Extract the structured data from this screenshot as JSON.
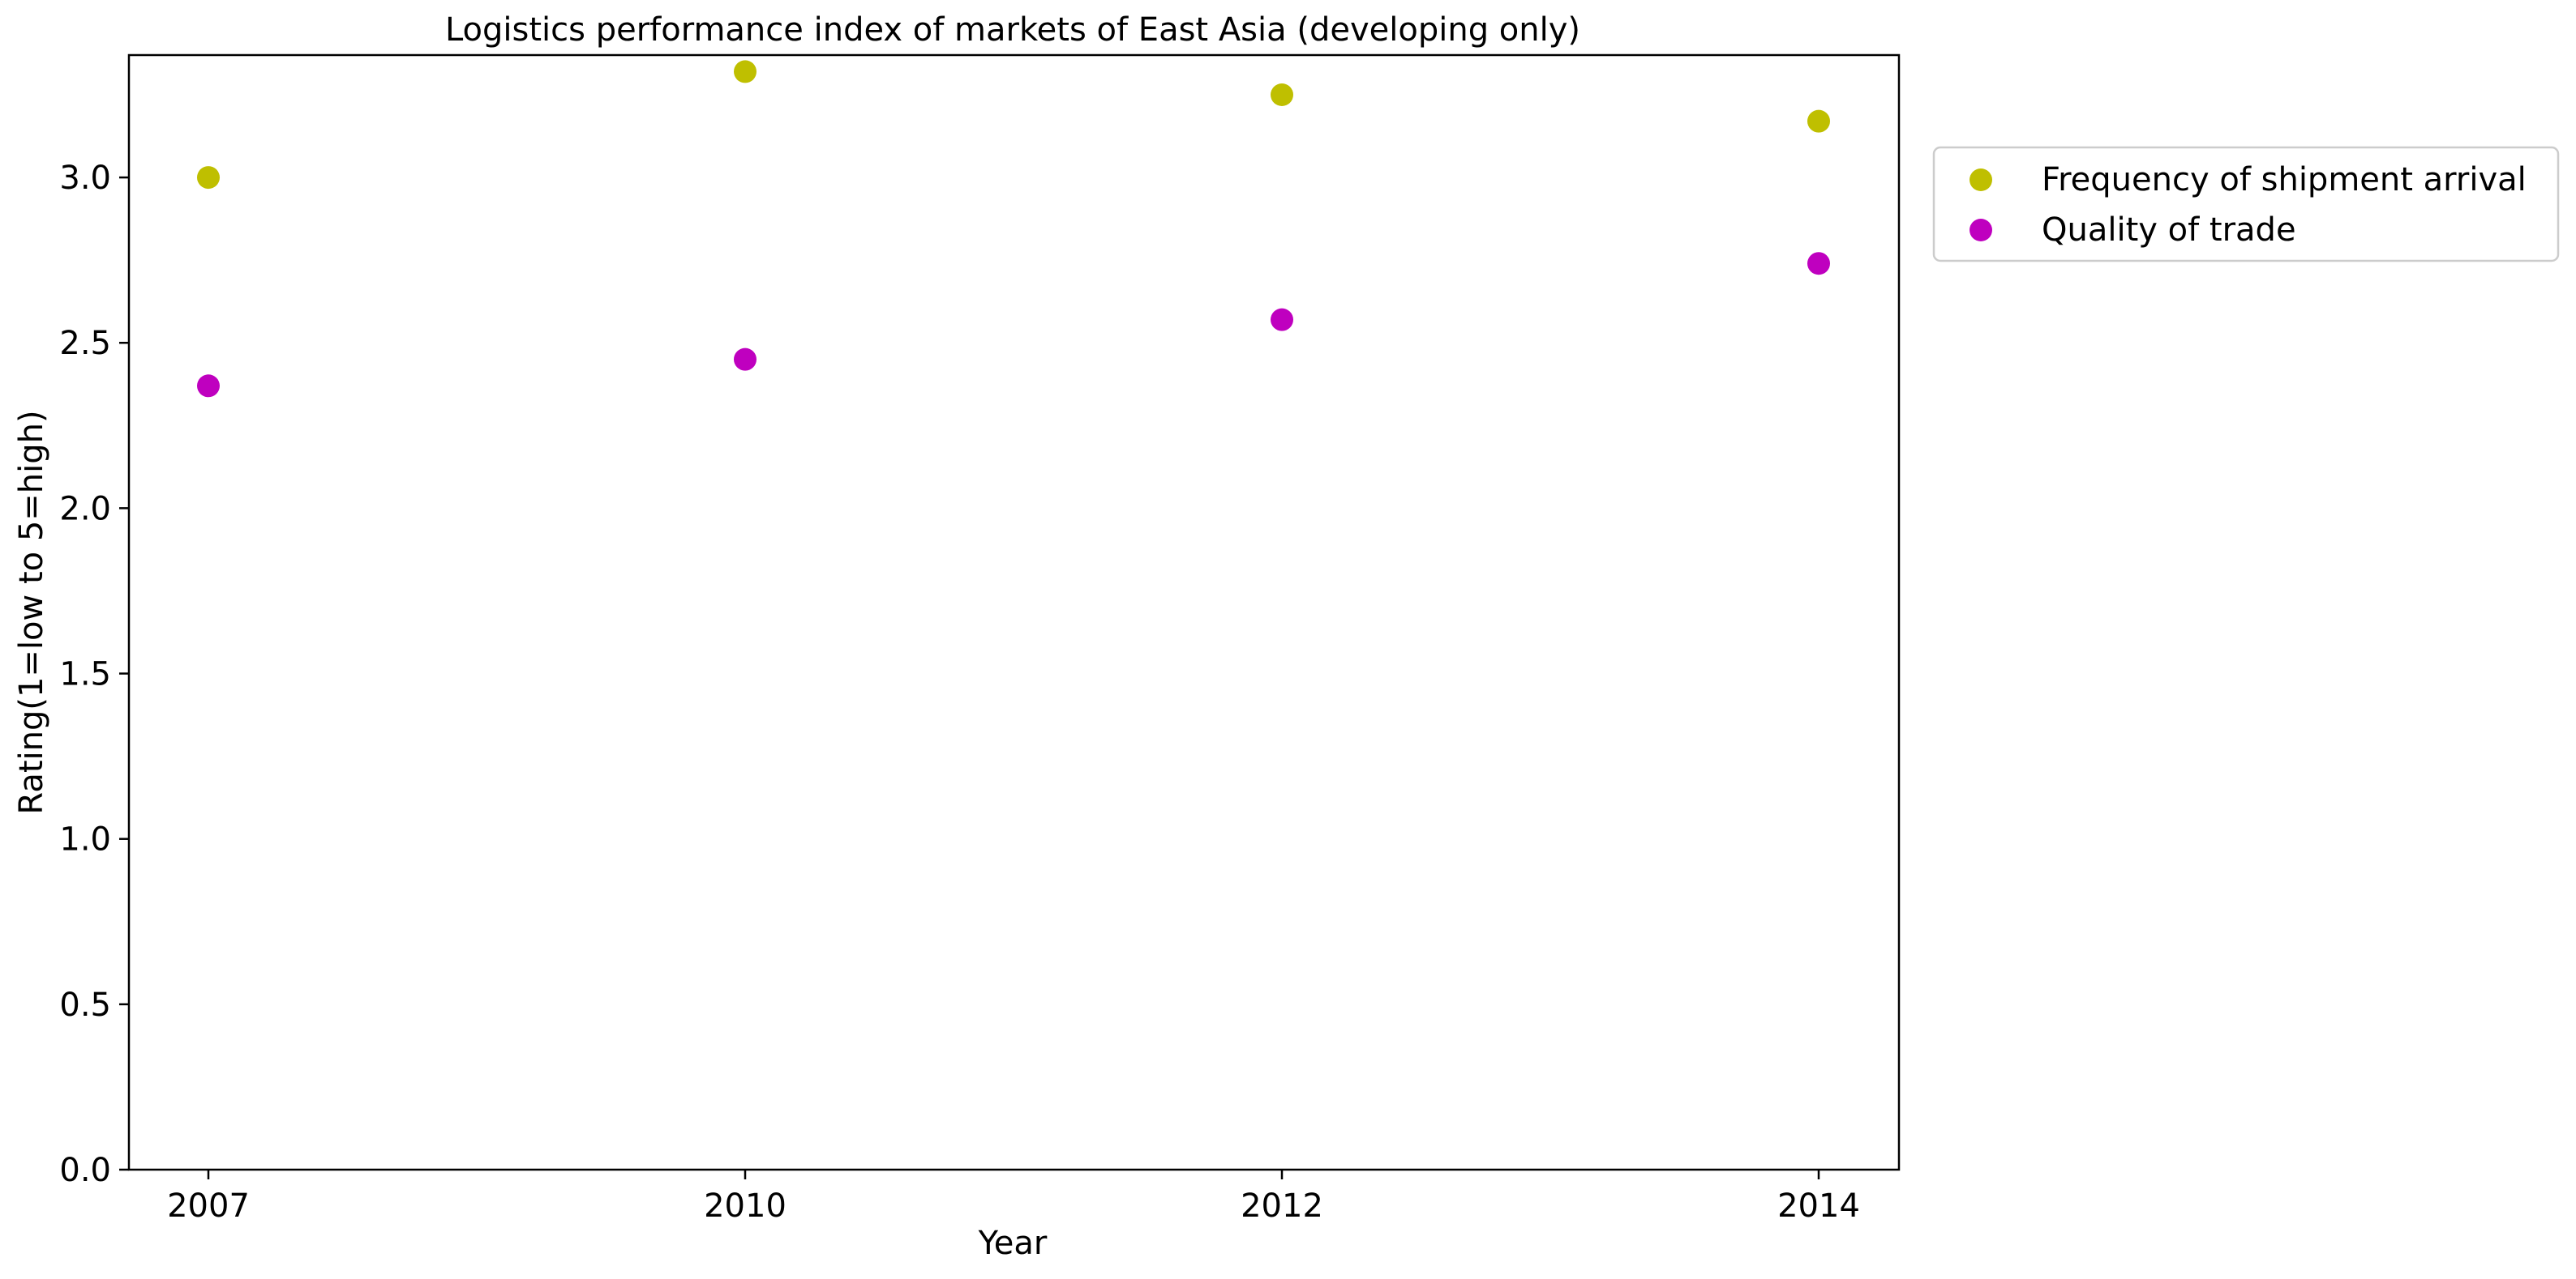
{
  "chart_data": {
    "type": "scatter",
    "title": "Logistics performance index of markets of East Asia (developing only)",
    "xlabel": "Year",
    "ylabel": "Rating(1=low to 5=high)",
    "categories": [
      "2007",
      "2010",
      "2012",
      "2014"
    ],
    "ylim": [
      0,
      3.37
    ],
    "yticks": [
      "0.0",
      "0.5",
      "1.0",
      "1.5",
      "2.0",
      "2.5",
      "3.0"
    ],
    "grid": false,
    "legend_position": "outside-right-top",
    "series": [
      {
        "name": "Frequency of shipment arrival",
        "color": "#bfbf00",
        "values": [
          3.0,
          3.32,
          3.25,
          3.17
        ]
      },
      {
        "name": "Quality of trade",
        "color": "#bf00bf",
        "values": [
          2.37,
          2.45,
          2.57,
          2.74
        ]
      }
    ]
  }
}
